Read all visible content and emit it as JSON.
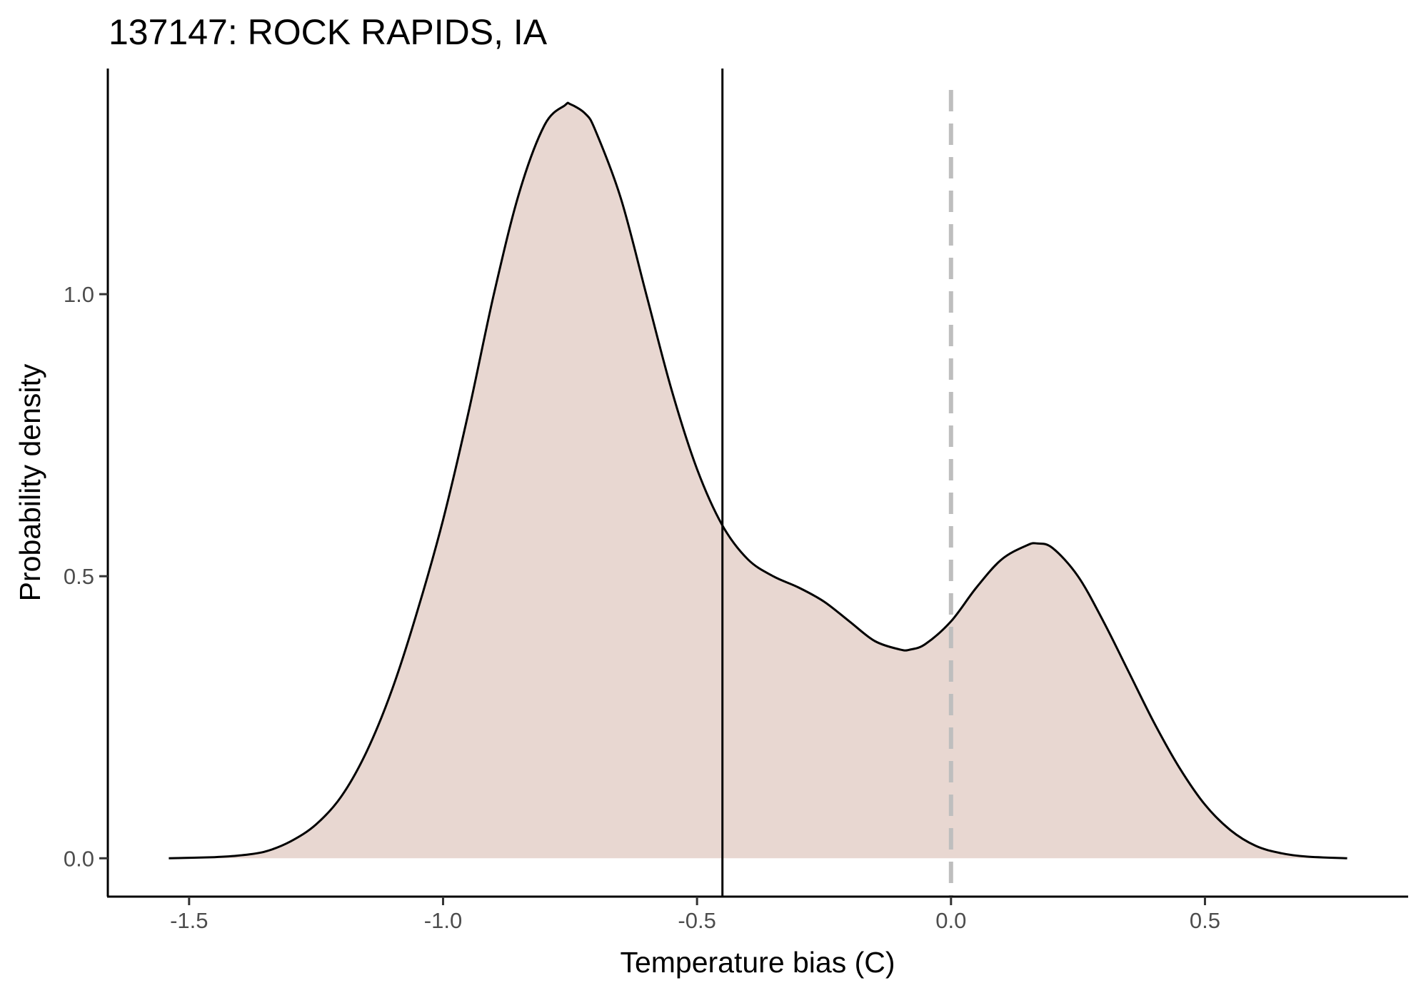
{
  "chart_data": {
    "type": "area",
    "title": "137147: ROCK RAPIDS, IA",
    "xlabel": "Temperature bias (C)",
    "ylabel": "Probability density",
    "xlim": [
      -1.66,
      0.9
    ],
    "ylim": [
      -0.068,
      1.4
    ],
    "grid": false,
    "x_ticks": [
      -1.5,
      -1.0,
      -0.5,
      0.0,
      0.5
    ],
    "x_tick_labels": [
      "-1.5",
      "-1.0",
      "-0.5",
      "0.0",
      "0.5"
    ],
    "y_ticks": [
      0.0,
      0.5,
      1.0
    ],
    "y_tick_labels": [
      "0.0",
      "0.5",
      "1.0"
    ],
    "series": [
      {
        "fill_color": "#e8d7d1",
        "line_color": "#000000",
        "x": [
          -1.54,
          -1.45,
          -1.4,
          -1.35,
          -1.3,
          -1.25,
          -1.2,
          -1.15,
          -1.1,
          -1.05,
          -1.0,
          -0.95,
          -0.9,
          -0.85,
          -0.8,
          -0.76,
          -0.75,
          -0.72,
          -0.7,
          -0.65,
          -0.6,
          -0.55,
          -0.5,
          -0.45,
          -0.4,
          -0.35,
          -0.3,
          -0.25,
          -0.2,
          -0.15,
          -0.1,
          -0.08,
          -0.05,
          0.0,
          0.05,
          0.1,
          0.15,
          0.17,
          0.2,
          0.25,
          0.3,
          0.35,
          0.4,
          0.45,
          0.5,
          0.55,
          0.6,
          0.65,
          0.7,
          0.78
        ],
        "y": [
          0.0,
          0.002,
          0.005,
          0.012,
          0.03,
          0.06,
          0.11,
          0.19,
          0.3,
          0.44,
          0.6,
          0.79,
          1.0,
          1.18,
          1.3,
          1.335,
          1.337,
          1.32,
          1.29,
          1.17,
          1.0,
          0.83,
          0.69,
          0.59,
          0.53,
          0.5,
          0.48,
          0.455,
          0.42,
          0.385,
          0.37,
          0.37,
          0.38,
          0.42,
          0.48,
          0.53,
          0.555,
          0.558,
          0.55,
          0.5,
          0.42,
          0.33,
          0.24,
          0.16,
          0.095,
          0.05,
          0.022,
          0.009,
          0.003,
          0.0
        ]
      }
    ],
    "reference_lines": [
      {
        "x": -0.45,
        "style": "solid",
        "color": "#000000"
      },
      {
        "x": 0.0,
        "style": "dashed",
        "color": "#bebebe"
      }
    ]
  }
}
